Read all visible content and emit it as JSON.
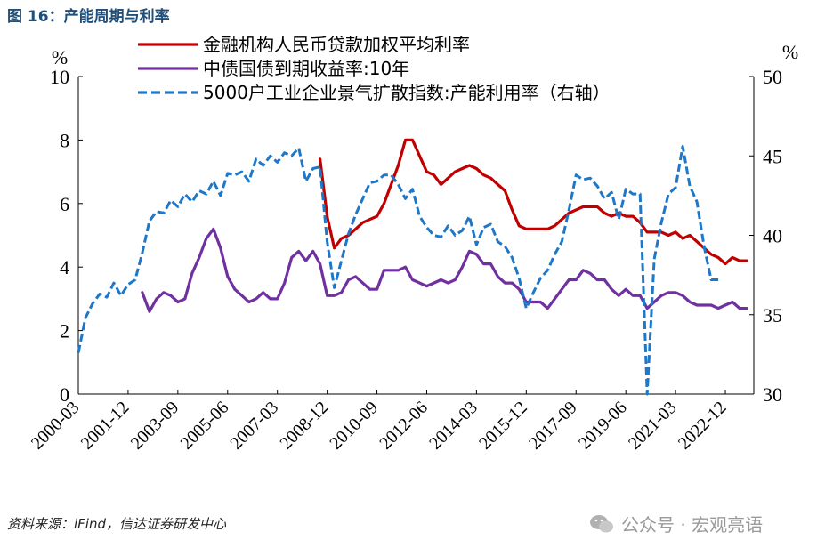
{
  "figure_title": "图 16：产能周期与利率",
  "source": "资料来源：iFind，信达证券研发中心",
  "watermark": "公众号 · 宏观亮语",
  "colors": {
    "title": "#1f4e79",
    "loan_rate": "#c00000",
    "bond_yield": "#7030a0",
    "capacity": "#1f77c8"
  },
  "chart_data": {
    "type": "line",
    "title": "",
    "left_axis": {
      "unit": "%",
      "ylim": [
        0,
        10
      ],
      "ticks": [
        0,
        2,
        4,
        6,
        8,
        10
      ]
    },
    "right_axis": {
      "unit": "%",
      "ylim": [
        30,
        50
      ],
      "ticks": [
        30,
        35,
        40,
        45,
        50
      ]
    },
    "x_ticks": [
      "2000-03",
      "2001-12",
      "2003-09",
      "2005-06",
      "2007-03",
      "2008-12",
      "2010-09",
      "2012-06",
      "2014-03",
      "2015-12",
      "2017-09",
      "2019-06",
      "2021-03",
      "2022-12"
    ],
    "x_range": [
      "2000-03",
      "2023-12"
    ],
    "legend_position": "top",
    "series": [
      {
        "name": "金融机构人民币贷款加权平均利率",
        "axis": "left",
        "style": "solid",
        "color": "#c00000",
        "points": [
          [
            "2008-09",
            7.4
          ],
          [
            "2008-12",
            5.6
          ],
          [
            "2009-03",
            4.6
          ],
          [
            "2009-06",
            4.9
          ],
          [
            "2009-09",
            5.0
          ],
          [
            "2009-12",
            5.2
          ],
          [
            "2010-03",
            5.4
          ],
          [
            "2010-06",
            5.5
          ],
          [
            "2010-09",
            5.6
          ],
          [
            "2010-12",
            6.0
          ],
          [
            "2011-03",
            6.6
          ],
          [
            "2011-06",
            7.2
          ],
          [
            "2011-09",
            8.0
          ],
          [
            "2011-12",
            8.0
          ],
          [
            "2012-03",
            7.5
          ],
          [
            "2012-06",
            7.0
          ],
          [
            "2012-09",
            6.9
          ],
          [
            "2012-12",
            6.6
          ],
          [
            "2013-03",
            6.8
          ],
          [
            "2013-06",
            7.0
          ],
          [
            "2013-09",
            7.1
          ],
          [
            "2013-12",
            7.2
          ],
          [
            "2014-03",
            7.1
          ],
          [
            "2014-06",
            6.9
          ],
          [
            "2014-09",
            6.8
          ],
          [
            "2014-12",
            6.6
          ],
          [
            "2015-03",
            6.4
          ],
          [
            "2015-06",
            5.8
          ],
          [
            "2015-09",
            5.3
          ],
          [
            "2015-12",
            5.2
          ],
          [
            "2016-03",
            5.2
          ],
          [
            "2016-06",
            5.2
          ],
          [
            "2016-09",
            5.2
          ],
          [
            "2016-12",
            5.3
          ],
          [
            "2017-03",
            5.5
          ],
          [
            "2017-06",
            5.7
          ],
          [
            "2017-09",
            5.8
          ],
          [
            "2017-12",
            5.9
          ],
          [
            "2018-03",
            5.9
          ],
          [
            "2018-06",
            5.9
          ],
          [
            "2018-09",
            5.7
          ],
          [
            "2018-12",
            5.6
          ],
          [
            "2019-03",
            5.7
          ],
          [
            "2019-06",
            5.6
          ],
          [
            "2019-09",
            5.6
          ],
          [
            "2019-12",
            5.4
          ],
          [
            "2020-03",
            5.1
          ],
          [
            "2020-06",
            5.1
          ],
          [
            "2020-09",
            5.1
          ],
          [
            "2020-12",
            5.0
          ],
          [
            "2021-03",
            5.1
          ],
          [
            "2021-06",
            4.9
          ],
          [
            "2021-09",
            5.0
          ],
          [
            "2021-12",
            4.8
          ],
          [
            "2022-03",
            4.6
          ],
          [
            "2022-06",
            4.4
          ],
          [
            "2022-09",
            4.3
          ],
          [
            "2022-12",
            4.1
          ],
          [
            "2023-03",
            4.3
          ],
          [
            "2023-06",
            4.2
          ],
          [
            "2023-09",
            4.2
          ]
        ]
      },
      {
        "name": "中债国债到期收益率:10年",
        "axis": "left",
        "style": "solid",
        "color": "#7030a0",
        "points": [
          [
            "2002-06",
            3.2
          ],
          [
            "2002-09",
            2.6
          ],
          [
            "2002-12",
            3.0
          ],
          [
            "2003-03",
            3.2
          ],
          [
            "2003-06",
            3.1
          ],
          [
            "2003-09",
            2.9
          ],
          [
            "2003-12",
            3.0
          ],
          [
            "2004-03",
            3.8
          ],
          [
            "2004-06",
            4.3
          ],
          [
            "2004-09",
            4.9
          ],
          [
            "2004-12",
            5.2
          ],
          [
            "2005-03",
            4.6
          ],
          [
            "2005-06",
            3.7
          ],
          [
            "2005-09",
            3.3
          ],
          [
            "2005-12",
            3.1
          ],
          [
            "2006-03",
            2.9
          ],
          [
            "2006-06",
            3.0
          ],
          [
            "2006-09",
            3.2
          ],
          [
            "2006-12",
            3.0
          ],
          [
            "2007-03",
            3.0
          ],
          [
            "2007-06",
            3.5
          ],
          [
            "2007-09",
            4.3
          ],
          [
            "2007-12",
            4.5
          ],
          [
            "2008-03",
            4.2
          ],
          [
            "2008-06",
            4.5
          ],
          [
            "2008-09",
            4.1
          ],
          [
            "2008-12",
            3.1
          ],
          [
            "2009-03",
            3.1
          ],
          [
            "2009-06",
            3.2
          ],
          [
            "2009-09",
            3.6
          ],
          [
            "2009-12",
            3.7
          ],
          [
            "2010-03",
            3.5
          ],
          [
            "2010-06",
            3.3
          ],
          [
            "2010-09",
            3.3
          ],
          [
            "2010-12",
            3.9
          ],
          [
            "2011-03",
            3.9
          ],
          [
            "2011-06",
            3.9
          ],
          [
            "2011-09",
            4.0
          ],
          [
            "2011-12",
            3.6
          ],
          [
            "2012-03",
            3.5
          ],
          [
            "2012-06",
            3.4
          ],
          [
            "2012-09",
            3.5
          ],
          [
            "2012-12",
            3.6
          ],
          [
            "2013-03",
            3.5
          ],
          [
            "2013-06",
            3.6
          ],
          [
            "2013-09",
            4.0
          ],
          [
            "2013-12",
            4.5
          ],
          [
            "2014-03",
            4.4
          ],
          [
            "2014-06",
            4.1
          ],
          [
            "2014-09",
            4.1
          ],
          [
            "2014-12",
            3.7
          ],
          [
            "2015-03",
            3.5
          ],
          [
            "2015-06",
            3.5
          ],
          [
            "2015-09",
            3.3
          ],
          [
            "2015-12",
            2.9
          ],
          [
            "2016-03",
            2.9
          ],
          [
            "2016-06",
            2.9
          ],
          [
            "2016-09",
            2.7
          ],
          [
            "2016-12",
            3.0
          ],
          [
            "2017-03",
            3.3
          ],
          [
            "2017-06",
            3.6
          ],
          [
            "2017-09",
            3.6
          ],
          [
            "2017-12",
            3.9
          ],
          [
            "2018-03",
            3.8
          ],
          [
            "2018-06",
            3.6
          ],
          [
            "2018-09",
            3.6
          ],
          [
            "2018-12",
            3.3
          ],
          [
            "2019-03",
            3.1
          ],
          [
            "2019-06",
            3.3
          ],
          [
            "2019-09",
            3.1
          ],
          [
            "2019-12",
            3.1
          ],
          [
            "2020-03",
            2.7
          ],
          [
            "2020-06",
            2.9
          ],
          [
            "2020-09",
            3.1
          ],
          [
            "2020-12",
            3.2
          ],
          [
            "2021-03",
            3.2
          ],
          [
            "2021-06",
            3.1
          ],
          [
            "2021-09",
            2.9
          ],
          [
            "2021-12",
            2.8
          ],
          [
            "2022-03",
            2.8
          ],
          [
            "2022-06",
            2.8
          ],
          [
            "2022-09",
            2.7
          ],
          [
            "2022-12",
            2.8
          ],
          [
            "2023-03",
            2.9
          ],
          [
            "2023-06",
            2.7
          ],
          [
            "2023-09",
            2.7
          ]
        ]
      },
      {
        "name": "5000户工业企业景气扩散指数:产能利用率（右轴）",
        "axis": "right",
        "style": "dashed",
        "color": "#1f77c8",
        "points": [
          [
            "2000-03",
            32.6
          ],
          [
            "2000-06",
            34.8
          ],
          [
            "2000-09",
            35.7
          ],
          [
            "2000-12",
            36.3
          ],
          [
            "2001-03",
            36.1
          ],
          [
            "2001-06",
            37.0
          ],
          [
            "2001-09",
            36.2
          ],
          [
            "2001-12",
            36.9
          ],
          [
            "2002-03",
            37.2
          ],
          [
            "2002-06",
            38.9
          ],
          [
            "2002-09",
            40.9
          ],
          [
            "2002-12",
            41.5
          ],
          [
            "2003-03",
            41.4
          ],
          [
            "2003-06",
            42.2
          ],
          [
            "2003-09",
            41.8
          ],
          [
            "2003-12",
            42.6
          ],
          [
            "2004-03",
            42.1
          ],
          [
            "2004-06",
            42.8
          ],
          [
            "2004-09",
            42.6
          ],
          [
            "2004-12",
            43.4
          ],
          [
            "2005-03",
            42.5
          ],
          [
            "2005-06",
            43.9
          ],
          [
            "2005-09",
            43.8
          ],
          [
            "2005-12",
            44.0
          ],
          [
            "2006-03",
            43.4
          ],
          [
            "2006-06",
            44.8
          ],
          [
            "2006-09",
            44.4
          ],
          [
            "2006-12",
            45.0
          ],
          [
            "2007-03",
            44.6
          ],
          [
            "2007-06",
            45.2
          ],
          [
            "2007-09",
            45.0
          ],
          [
            "2007-12",
            45.5
          ],
          [
            "2008-03",
            43.4
          ],
          [
            "2008-06",
            44.2
          ],
          [
            "2008-09",
            44.3
          ],
          [
            "2008-12",
            39.6
          ],
          [
            "2009-03",
            36.7
          ],
          [
            "2009-06",
            38.4
          ],
          [
            "2009-09",
            40.1
          ],
          [
            "2009-12",
            41.3
          ],
          [
            "2010-03",
            42.3
          ],
          [
            "2010-06",
            43.3
          ],
          [
            "2010-09",
            43.4
          ],
          [
            "2010-12",
            43.8
          ],
          [
            "2011-03",
            43.8
          ],
          [
            "2011-06",
            43.2
          ],
          [
            "2011-09",
            42.3
          ],
          [
            "2011-12",
            42.9
          ],
          [
            "2012-03",
            41.2
          ],
          [
            "2012-06",
            40.5
          ],
          [
            "2012-09",
            40.0
          ],
          [
            "2012-12",
            39.9
          ],
          [
            "2013-03",
            40.6
          ],
          [
            "2013-06",
            40.0
          ],
          [
            "2013-09",
            40.3
          ],
          [
            "2013-12",
            41.2
          ],
          [
            "2014-03",
            39.4
          ],
          [
            "2014-06",
            40.5
          ],
          [
            "2014-09",
            40.7
          ],
          [
            "2014-12",
            39.6
          ],
          [
            "2015-03",
            39.3
          ],
          [
            "2015-06",
            38.6
          ],
          [
            "2015-09",
            37.3
          ],
          [
            "2015-12",
            35.4
          ],
          [
            "2016-03",
            36.4
          ],
          [
            "2016-06",
            37.3
          ],
          [
            "2016-09",
            37.8
          ],
          [
            "2016-12",
            38.8
          ],
          [
            "2017-03",
            39.6
          ],
          [
            "2017-06",
            41.6
          ],
          [
            "2017-09",
            43.8
          ],
          [
            "2017-12",
            43.5
          ],
          [
            "2018-03",
            43.6
          ],
          [
            "2018-06",
            43.1
          ],
          [
            "2018-09",
            42.3
          ],
          [
            "2018-12",
            42.7
          ],
          [
            "2019-03",
            41.0
          ],
          [
            "2019-06",
            42.9
          ],
          [
            "2019-09",
            42.6
          ],
          [
            "2019-12",
            42.6
          ],
          [
            "2020-03",
            30.0
          ],
          [
            "2020-06",
            38.5
          ],
          [
            "2020-09",
            40.8
          ],
          [
            "2020-12",
            42.6
          ],
          [
            "2021-03",
            43.0
          ],
          [
            "2021-06",
            45.6
          ],
          [
            "2021-09",
            43.1
          ],
          [
            "2021-12",
            42.1
          ],
          [
            "2022-03",
            39.3
          ],
          [
            "2022-06",
            37.2
          ],
          [
            "2022-09",
            37.2
          ]
        ]
      }
    ]
  }
}
